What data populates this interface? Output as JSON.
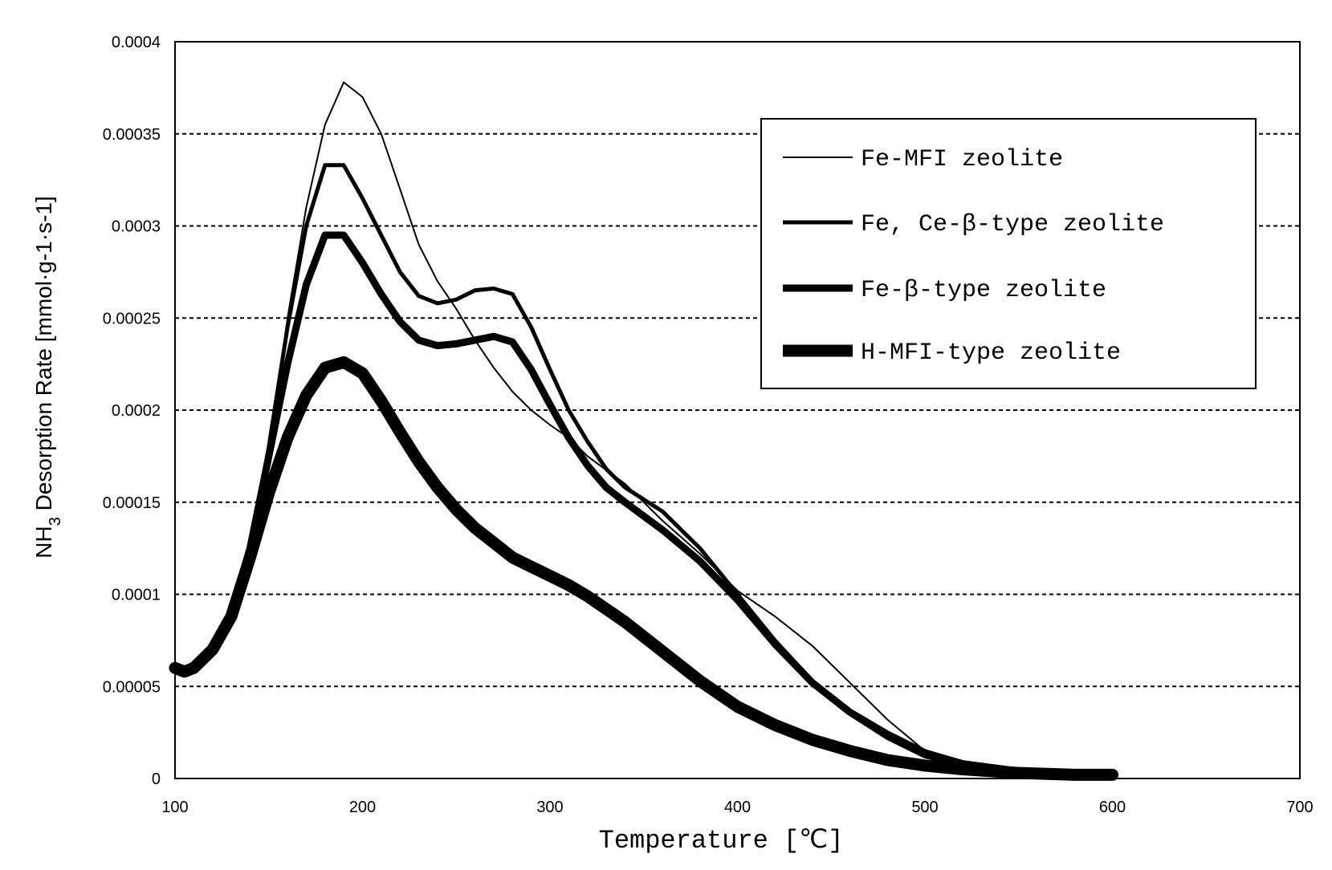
{
  "chart_data": {
    "type": "line",
    "xlabel": "Temperature [℃]",
    "ylabel_main": "NH",
    "ylabel_sub": "3",
    "ylabel_rest": " Desorption Rate [mmol·g-1·s-1]",
    "xlim": [
      100,
      700
    ],
    "ylim": [
      0,
      0.0004
    ],
    "x_ticks": [
      "100",
      "200",
      "300",
      "400",
      "500",
      "600",
      "700"
    ],
    "y_ticks": [
      "0",
      "0.00005",
      "0.0001",
      "0.00015",
      "0.0002",
      "0.00025",
      "0.0003",
      "0.00035",
      "0.0004"
    ],
    "grid": "horizontal dashed",
    "legend_position": "top-right",
    "series": [
      {
        "name": "Fe-MFI zeolite",
        "color": "#000000",
        "points": [
          [
            100,
            6e-05
          ],
          [
            105,
            5.8e-05
          ],
          [
            110,
            6e-05
          ],
          [
            120,
            7.2e-05
          ],
          [
            130,
            9e-05
          ],
          [
            140,
            0.000125
          ],
          [
            150,
            0.000175
          ],
          [
            160,
            0.00025
          ],
          [
            170,
            0.00031
          ],
          [
            180,
            0.000355
          ],
          [
            190,
            0.000378
          ],
          [
            200,
            0.00037
          ],
          [
            210,
            0.00035
          ],
          [
            220,
            0.00032
          ],
          [
            230,
            0.00029
          ],
          [
            240,
            0.00027
          ],
          [
            250,
            0.000255
          ],
          [
            260,
            0.000238
          ],
          [
            270,
            0.000223
          ],
          [
            280,
            0.00021
          ],
          [
            290,
            0.0002
          ],
          [
            300,
            0.000192
          ],
          [
            310,
            0.000185
          ],
          [
            320,
            0.000175
          ],
          [
            340,
            0.00016
          ],
          [
            360,
            0.00014
          ],
          [
            380,
            0.000122
          ],
          [
            400,
            0.000102
          ],
          [
            420,
            8.8e-05
          ],
          [
            440,
            7.2e-05
          ],
          [
            460,
            5.2e-05
          ],
          [
            480,
            3.2e-05
          ],
          [
            500,
            1.5e-05
          ],
          [
            520,
            7e-06
          ],
          [
            550,
            3e-06
          ],
          [
            580,
            2e-06
          ],
          [
            600,
            2e-06
          ]
        ]
      },
      {
        "name": "Fe, Ce-β-type zeolite",
        "color": "#000000",
        "points": [
          [
            100,
            6e-05
          ],
          [
            105,
            5.8e-05
          ],
          [
            110,
            6e-05
          ],
          [
            120,
            7.2e-05
          ],
          [
            130,
            9e-05
          ],
          [
            140,
            0.000125
          ],
          [
            150,
            0.00018
          ],
          [
            160,
            0.000245
          ],
          [
            170,
            0.0003
          ],
          [
            180,
            0.000333
          ],
          [
            190,
            0.000333
          ],
          [
            200,
            0.000315
          ],
          [
            210,
            0.000295
          ],
          [
            220,
            0.000275
          ],
          [
            230,
            0.000262
          ],
          [
            240,
            0.000258
          ],
          [
            250,
            0.00026
          ],
          [
            260,
            0.000265
          ],
          [
            270,
            0.000266
          ],
          [
            280,
            0.000263
          ],
          [
            290,
            0.000245
          ],
          [
            300,
            0.000222
          ],
          [
            310,
            0.0002
          ],
          [
            320,
            0.000183
          ],
          [
            330,
            0.000168
          ],
          [
            340,
            0.000158
          ],
          [
            360,
            0.000145
          ],
          [
            380,
            0.000125
          ],
          [
            400,
            0.0001
          ],
          [
            420,
            7.5e-05
          ],
          [
            440,
            5.3e-05
          ],
          [
            460,
            3.5e-05
          ],
          [
            480,
            2.2e-05
          ],
          [
            500,
            1.2e-05
          ],
          [
            520,
            7e-06
          ],
          [
            550,
            3e-06
          ],
          [
            580,
            2e-06
          ],
          [
            600,
            2e-06
          ]
        ]
      },
      {
        "name": "Fe-β-type zeolite",
        "color": "#000000",
        "points": [
          [
            100,
            6e-05
          ],
          [
            105,
            5.8e-05
          ],
          [
            110,
            6e-05
          ],
          [
            120,
            7.2e-05
          ],
          [
            130,
            9e-05
          ],
          [
            140,
            0.000125
          ],
          [
            150,
            0.000175
          ],
          [
            160,
            0.000225
          ],
          [
            170,
            0.000268
          ],
          [
            180,
            0.000295
          ],
          [
            190,
            0.000295
          ],
          [
            200,
            0.00028
          ],
          [
            210,
            0.000263
          ],
          [
            220,
            0.000248
          ],
          [
            230,
            0.000238
          ],
          [
            240,
            0.000235
          ],
          [
            250,
            0.000236
          ],
          [
            260,
            0.000238
          ],
          [
            270,
            0.00024
          ],
          [
            280,
            0.000237
          ],
          [
            290,
            0.000222
          ],
          [
            300,
            0.000203
          ],
          [
            310,
            0.000185
          ],
          [
            320,
            0.00017
          ],
          [
            330,
            0.000158
          ],
          [
            340,
            0.00015
          ],
          [
            360,
            0.000135
          ],
          [
            380,
            0.000118
          ],
          [
            400,
            9.7e-05
          ],
          [
            420,
            7.3e-05
          ],
          [
            440,
            5.2e-05
          ],
          [
            460,
            3.6e-05
          ],
          [
            480,
            2.4e-05
          ],
          [
            500,
            1.4e-05
          ],
          [
            520,
            8e-06
          ],
          [
            550,
            4e-06
          ],
          [
            580,
            2e-06
          ],
          [
            600,
            2e-06
          ]
        ]
      },
      {
        "name": "H-MFI-type zeolite",
        "color": "#000000",
        "points": [
          [
            100,
            6e-05
          ],
          [
            105,
            5.8e-05
          ],
          [
            110,
            6e-05
          ],
          [
            120,
            7e-05
          ],
          [
            130,
            8.8e-05
          ],
          [
            140,
            0.00012
          ],
          [
            150,
            0.000155
          ],
          [
            160,
            0.000185
          ],
          [
            170,
            0.000208
          ],
          [
            180,
            0.000223
          ],
          [
            190,
            0.000226
          ],
          [
            200,
            0.00022
          ],
          [
            210,
            0.000205
          ],
          [
            220,
            0.000188
          ],
          [
            230,
            0.000172
          ],
          [
            240,
            0.000158
          ],
          [
            250,
            0.000146
          ],
          [
            260,
            0.000136
          ],
          [
            270,
            0.000128
          ],
          [
            280,
            0.00012
          ],
          [
            290,
            0.000115
          ],
          [
            300,
            0.00011
          ],
          [
            310,
            0.000105
          ],
          [
            320,
            9.9e-05
          ],
          [
            340,
            8.5e-05
          ],
          [
            360,
            6.9e-05
          ],
          [
            380,
            5.3e-05
          ],
          [
            400,
            3.9e-05
          ],
          [
            420,
            2.9e-05
          ],
          [
            440,
            2.1e-05
          ],
          [
            460,
            1.5e-05
          ],
          [
            480,
            1e-05
          ],
          [
            500,
            7e-06
          ],
          [
            520,
            5e-06
          ],
          [
            550,
            3e-06
          ],
          [
            580,
            2e-06
          ],
          [
            600,
            2e-06
          ]
        ]
      }
    ]
  }
}
